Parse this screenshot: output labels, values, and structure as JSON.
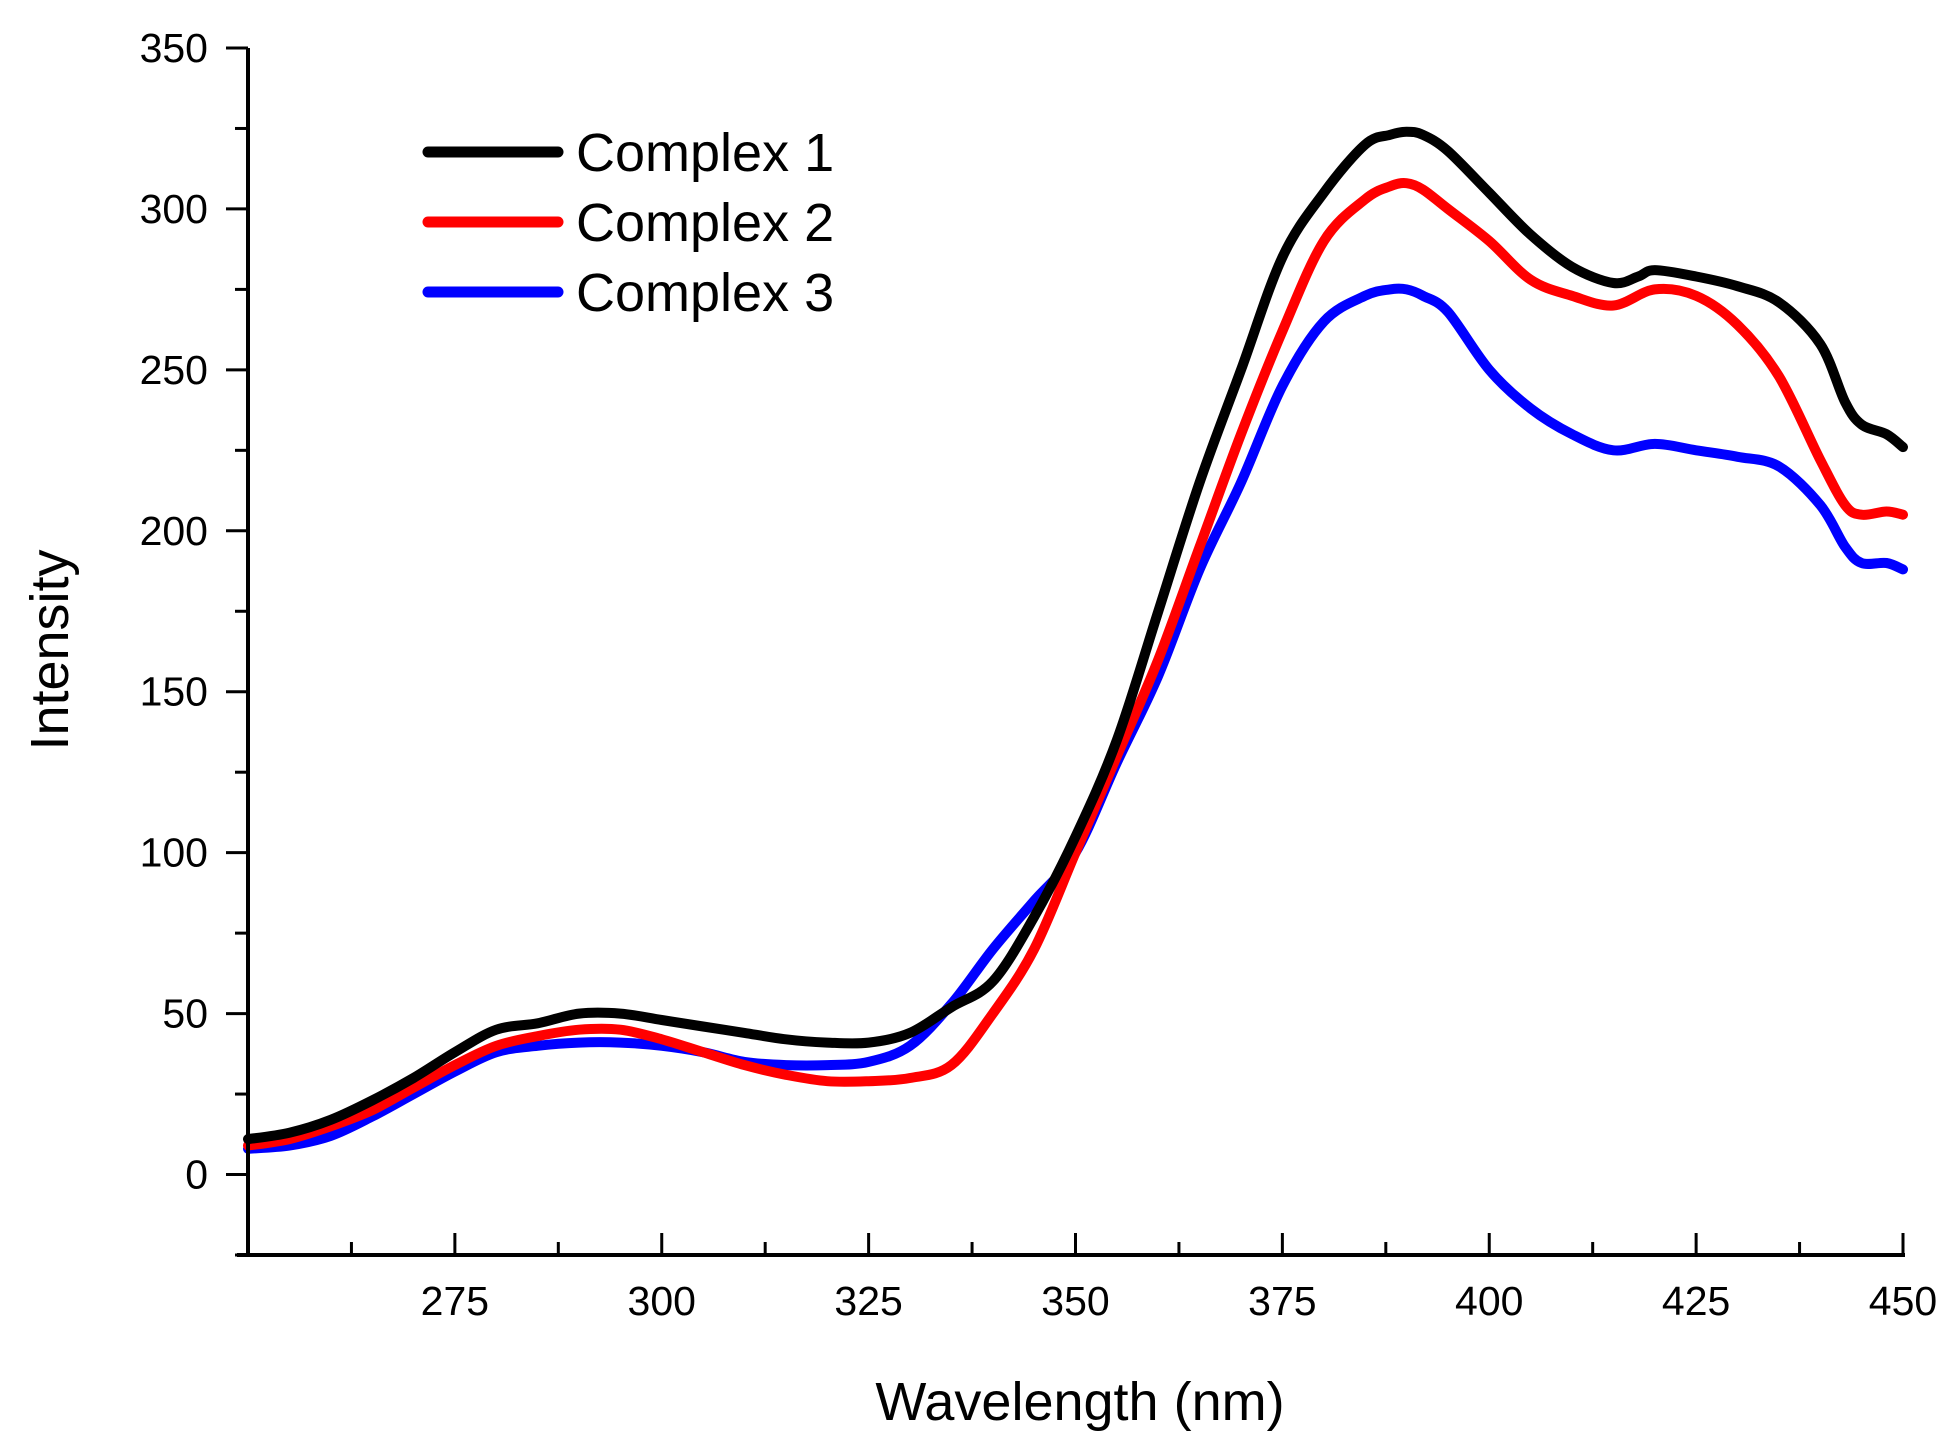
{
  "chart_data": {
    "type": "line",
    "title": "",
    "xlabel": "Wavelength (nm)",
    "ylabel": "Intensity",
    "xlim": [
      250,
      450
    ],
    "ylim": [
      -25,
      350
    ],
    "xticks": [
      275,
      300,
      325,
      350,
      375,
      400,
      425,
      450
    ],
    "xtick_labels": [
      "275",
      "300",
      "325",
      "350",
      "375",
      "400",
      "425",
      "450"
    ],
    "yticks": [
      0,
      50,
      100,
      150,
      200,
      250,
      300,
      350
    ],
    "ytick_labels": [
      "0",
      "50",
      "100",
      "150",
      "200",
      "250",
      "300",
      "350"
    ],
    "grid": false,
    "legend_position": "top-left",
    "series": [
      {
        "name": "Complex 1",
        "color": "#000000",
        "x": [
          250,
          255,
          260,
          265,
          270,
          275,
          280,
          285,
          290,
          295,
          300,
          305,
          310,
          315,
          320,
          325,
          330,
          335,
          340,
          345,
          350,
          355,
          360,
          365,
          370,
          375,
          380,
          385,
          388,
          390,
          392,
          395,
          400,
          405,
          410,
          415,
          418,
          420,
          425,
          430,
          435,
          440,
          443,
          445,
          448,
          450
        ],
        "values": [
          11,
          13,
          17,
          23,
          30,
          38,
          45,
          47,
          50,
          50,
          48,
          46,
          44,
          42,
          41,
          41,
          44,
          52,
          60,
          80,
          105,
          135,
          175,
          215,
          250,
          285,
          305,
          320,
          323,
          324,
          323,
          318,
          305,
          292,
          282,
          277,
          279,
          281,
          279,
          276,
          271,
          258,
          240,
          233,
          230,
          226
        ]
      },
      {
        "name": "Complex 2",
        "color": "#ff0000",
        "x": [
          250,
          255,
          260,
          265,
          270,
          275,
          280,
          285,
          290,
          295,
          300,
          305,
          310,
          315,
          320,
          325,
          330,
          335,
          340,
          345,
          350,
          355,
          360,
          365,
          370,
          375,
          380,
          385,
          388,
          390,
          392,
          395,
          400,
          405,
          410,
          415,
          420,
          425,
          430,
          435,
          440,
          443,
          445,
          448,
          450
        ],
        "values": [
          9,
          11,
          15,
          20,
          27,
          34,
          40,
          43,
          45,
          45,
          42,
          38,
          34,
          31,
          29,
          29,
          30,
          34,
          50,
          70,
          100,
          130,
          160,
          195,
          230,
          262,
          290,
          303,
          307,
          308,
          306,
          300,
          290,
          278,
          273,
          270,
          275,
          273,
          264,
          248,
          222,
          208,
          205,
          206,
          205
        ]
      },
      {
        "name": "Complex 3",
        "color": "#0000ff",
        "x": [
          250,
          255,
          260,
          265,
          270,
          275,
          280,
          285,
          290,
          295,
          300,
          305,
          310,
          315,
          320,
          325,
          330,
          335,
          340,
          345,
          350,
          355,
          360,
          365,
          370,
          375,
          380,
          385,
          388,
          390,
          392,
          395,
          400,
          405,
          410,
          415,
          420,
          425,
          430,
          435,
          440,
          443,
          445,
          448,
          450
        ],
        "values": [
          8,
          9,
          12,
          18,
          25,
          32,
          38,
          40,
          41,
          41,
          40,
          38,
          35,
          34,
          34,
          35,
          40,
          53,
          70,
          85,
          100,
          128,
          155,
          188,
          215,
          245,
          265,
          273,
          275,
          275,
          273,
          268,
          250,
          238,
          230,
          225,
          227,
          225,
          223,
          220,
          208,
          195,
          190,
          190,
          188
        ]
      }
    ]
  }
}
